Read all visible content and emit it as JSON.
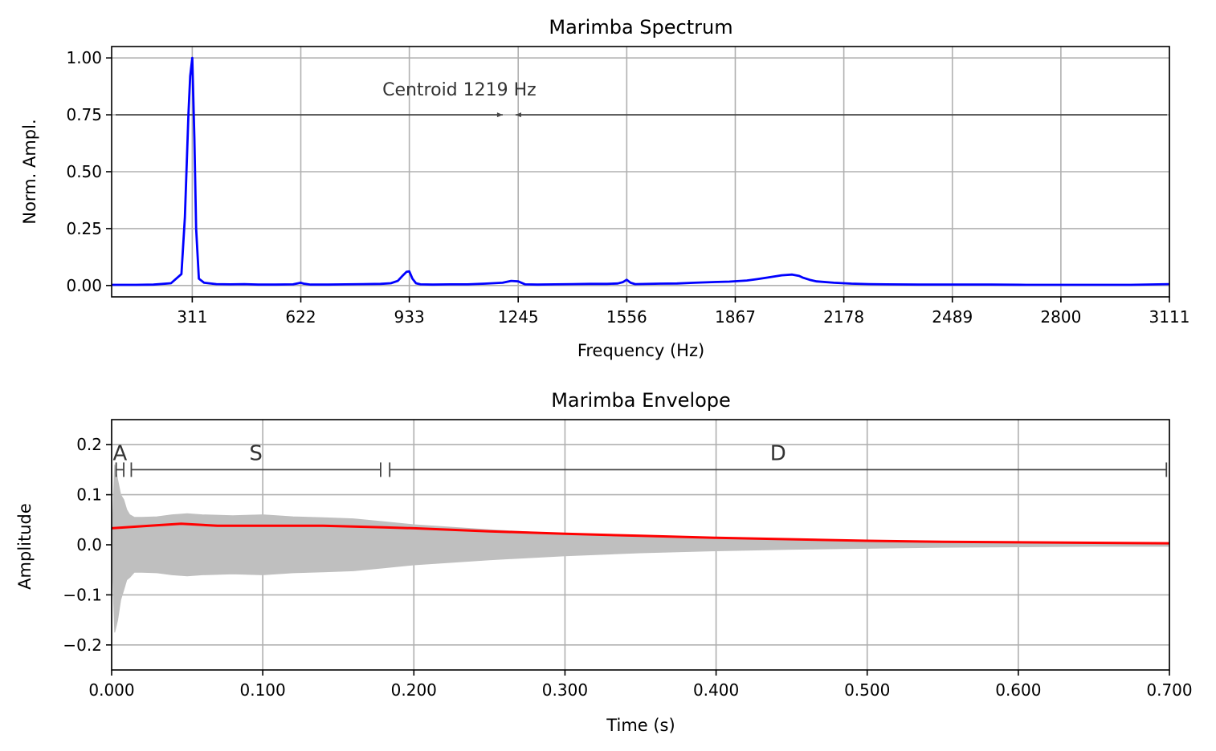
{
  "colors": {
    "spectrum": "#0000ff",
    "envelope": "#ff0000",
    "waveform": "#bfbfbf",
    "annotation": "#333333",
    "grid": "#b0b0b0"
  },
  "chart_data": [
    {
      "type": "line",
      "title": "Marimba Spectrum",
      "xlabel": "Frequency (Hz)",
      "ylabel": "Norm. Ampl.",
      "xlim": [
        80,
        3111
      ],
      "ylim": [
        -0.05,
        1.05
      ],
      "xticks": [
        311,
        622,
        933,
        1245,
        1556,
        1867,
        2178,
        2489,
        2800,
        3111
      ],
      "xtick_labels": [
        "311",
        "622",
        "933",
        "1245",
        "1556",
        "1867",
        "2178",
        "2489",
        "2800",
        "3111"
      ],
      "yticks": [
        0.0,
        0.25,
        0.5,
        0.75,
        1.0
      ],
      "ytick_labels": [
        "0.00",
        "0.25",
        "0.50",
        "0.75",
        "1.00"
      ],
      "grid": true,
      "annotation": {
        "text": "Centroid 1219 Hz",
        "value": 1219,
        "y": 0.75,
        "from": 80,
        "to": 3111
      },
      "series": [
        {
          "x": [
            80,
            150,
            200,
            250,
            280,
            290,
            300,
            305,
            311,
            317,
            322,
            330,
            345,
            380,
            420,
            460,
            500,
            550,
            600,
            615,
            622,
            630,
            650,
            700,
            750,
            800,
            850,
            880,
            900,
            915,
            925,
            933,
            942,
            952,
            965,
            1000,
            1050,
            1100,
            1150,
            1200,
            1225,
            1245,
            1265,
            1300,
            1350,
            1400,
            1450,
            1500,
            1530,
            1545,
            1556,
            1567,
            1580,
            1650,
            1700,
            1750,
            1800,
            1850,
            1900,
            1930,
            1960,
            2000,
            2030,
            2050,
            2060,
            2080,
            2100,
            2150,
            2200,
            2250,
            2300,
            2400,
            2500,
            2600,
            2700,
            2800,
            2900,
            3000,
            3111
          ],
          "y": [
            0.003,
            0.003,
            0.004,
            0.01,
            0.05,
            0.3,
            0.75,
            0.92,
            1.0,
            0.65,
            0.25,
            0.03,
            0.012,
            0.006,
            0.005,
            0.006,
            0.004,
            0.004,
            0.005,
            0.01,
            0.012,
            0.008,
            0.004,
            0.004,
            0.005,
            0.006,
            0.007,
            0.01,
            0.02,
            0.045,
            0.06,
            0.062,
            0.03,
            0.01,
            0.005,
            0.004,
            0.005,
            0.005,
            0.008,
            0.012,
            0.02,
            0.018,
            0.005,
            0.004,
            0.005,
            0.006,
            0.007,
            0.007,
            0.009,
            0.015,
            0.025,
            0.012,
            0.006,
            0.008,
            0.009,
            0.012,
            0.015,
            0.017,
            0.022,
            0.028,
            0.035,
            0.045,
            0.048,
            0.042,
            0.035,
            0.025,
            0.018,
            0.012,
            0.008,
            0.006,
            0.005,
            0.004,
            0.004,
            0.004,
            0.003,
            0.003,
            0.003,
            0.003,
            0.006
          ]
        }
      ]
    },
    {
      "type": "line",
      "title": "Marimba Envelope",
      "xlabel": "Time (s)",
      "ylabel": "Amplitude",
      "xlim": [
        0.0,
        0.7
      ],
      "ylim": [
        -0.25,
        0.25
      ],
      "xticks": [
        0.0,
        0.1,
        0.2,
        0.3,
        0.4,
        0.5,
        0.6,
        0.7
      ],
      "xtick_labels": [
        "0.000",
        "0.100",
        "0.200",
        "0.300",
        "0.400",
        "0.500",
        "0.600",
        "0.700"
      ],
      "yticks": [
        -0.2,
        -0.1,
        0.0,
        0.1,
        0.2
      ],
      "ytick_labels": [
        "−0.2",
        "−0.1",
        "0.0",
        "0.1",
        "0.2"
      ],
      "grid": true,
      "phases": [
        {
          "label": "A",
          "start": 0.003,
          "end": 0.008
        },
        {
          "label": "S",
          "start": 0.013,
          "end": 0.178
        },
        {
          "label": "D",
          "start": 0.184,
          "end": 0.698
        }
      ],
      "phase_y": 0.15,
      "waveform_bounds": {
        "t": [
          0.0,
          0.002,
          0.004,
          0.006,
          0.008,
          0.01,
          0.012,
          0.015,
          0.02,
          0.03,
          0.04,
          0.05,
          0.06,
          0.08,
          0.1,
          0.12,
          0.14,
          0.16,
          0.18,
          0.2,
          0.25,
          0.3,
          0.35,
          0.4,
          0.45,
          0.5,
          0.55,
          0.6,
          0.65,
          0.7
        ],
        "upper": [
          0.0,
          0.16,
          0.13,
          0.1,
          0.09,
          0.07,
          0.06,
          0.055,
          0.055,
          0.056,
          0.06,
          0.062,
          0.06,
          0.058,
          0.06,
          0.056,
          0.054,
          0.052,
          0.046,
          0.04,
          0.03,
          0.022,
          0.016,
          0.012,
          0.009,
          0.007,
          0.005,
          0.004,
          0.003,
          0.003
        ],
        "lower": [
          0.0,
          -0.175,
          -0.15,
          -0.11,
          -0.09,
          -0.07,
          -0.065,
          -0.055,
          -0.055,
          -0.056,
          -0.06,
          -0.062,
          -0.06,
          -0.058,
          -0.06,
          -0.056,
          -0.054,
          -0.052,
          -0.046,
          -0.04,
          -0.03,
          -0.022,
          -0.016,
          -0.012,
          -0.009,
          -0.007,
          -0.005,
          -0.004,
          -0.003,
          -0.003
        ]
      },
      "series": [
        {
          "x": [
            0.0,
            0.02,
            0.046,
            0.07,
            0.1,
            0.14,
            0.18,
            0.2,
            0.25,
            0.3,
            0.35,
            0.4,
            0.45,
            0.5,
            0.55,
            0.6,
            0.65,
            0.7
          ],
          "y": [
            0.033,
            0.037,
            0.042,
            0.038,
            0.038,
            0.038,
            0.035,
            0.033,
            0.027,
            0.022,
            0.018,
            0.014,
            0.011,
            0.008,
            0.006,
            0.005,
            0.004,
            0.003
          ]
        }
      ]
    }
  ]
}
